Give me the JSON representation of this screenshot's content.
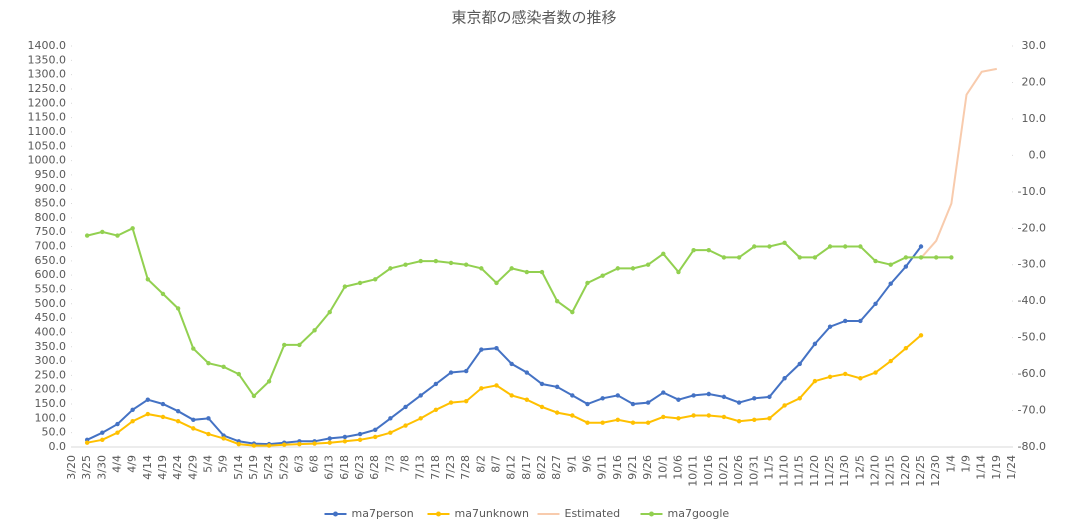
{
  "chart_data": {
    "type": "line",
    "title": "東京都の感染者数の推移",
    "categories": [
      "3/20",
      "3/25",
      "3/30",
      "4/4",
      "4/9",
      "4/14",
      "4/19",
      "4/24",
      "4/29",
      "5/4",
      "5/9",
      "5/14",
      "5/19",
      "5/24",
      "5/29",
      "6/3",
      "6/8",
      "6/13",
      "6/18",
      "6/23",
      "6/28",
      "7/3",
      "7/8",
      "7/13",
      "7/18",
      "7/23",
      "7/28",
      "8/2",
      "8/7",
      "8/12",
      "8/17",
      "8/22",
      "8/27",
      "9/1",
      "9/6",
      "9/11",
      "9/16",
      "9/21",
      "9/26",
      "10/1",
      "10/6",
      "10/11",
      "10/16",
      "10/21",
      "10/26",
      "10/31",
      "11/5",
      "11/10",
      "11/15",
      "11/20",
      "11/25",
      "11/30",
      "12/5",
      "12/10",
      "12/15",
      "12/20",
      "12/25",
      "12/30",
      "1/4",
      "1/9",
      "1/14",
      "1/19",
      "1/24"
    ],
    "series": [
      {
        "name": "ma7person",
        "color": "#4472c4",
        "marker": true,
        "values": [
          null,
          25,
          50,
          80,
          130,
          165,
          150,
          125,
          95,
          100,
          40,
          20,
          12,
          10,
          15,
          20,
          20,
          30,
          35,
          45,
          60,
          100,
          140,
          180,
          220,
          260,
          265,
          340,
          345,
          290,
          260,
          220,
          210,
          180,
          150,
          170,
          180,
          150,
          155,
          190,
          165,
          180,
          185,
          175,
          155,
          170,
          175,
          240,
          290,
          360,
          420,
          440,
          440,
          500,
          570,
          630,
          700,
          null,
          null,
          null,
          null,
          null,
          null
        ]
      },
      {
        "name": "ma7unknown",
        "color": "#ffc000",
        "marker": true,
        "values": [
          null,
          15,
          25,
          50,
          90,
          115,
          105,
          90,
          65,
          45,
          30,
          10,
          5,
          5,
          8,
          10,
          12,
          15,
          20,
          25,
          35,
          50,
          75,
          100,
          130,
          155,
          160,
          205,
          215,
          180,
          165,
          140,
          120,
          110,
          85,
          85,
          95,
          85,
          85,
          105,
          100,
          110,
          110,
          105,
          90,
          95,
          100,
          145,
          170,
          230,
          245,
          255,
          240,
          260,
          300,
          345,
          390,
          null,
          null,
          null,
          null,
          null,
          null
        ]
      },
      {
        "name": "Estimated",
        "color": "#f8cbad",
        "marker": false,
        "values": [
          null,
          null,
          null,
          null,
          null,
          null,
          null,
          null,
          null,
          null,
          null,
          null,
          null,
          null,
          null,
          null,
          null,
          null,
          null,
          null,
          null,
          null,
          null,
          null,
          null,
          null,
          null,
          null,
          null,
          null,
          null,
          null,
          null,
          null,
          null,
          null,
          null,
          null,
          null,
          null,
          null,
          null,
          null,
          null,
          null,
          null,
          null,
          null,
          null,
          null,
          null,
          null,
          null,
          null,
          null,
          null,
          660,
          720,
          850,
          1230,
          1310,
          1320,
          null
        ]
      },
      {
        "name": "ma7google",
        "color": "#92d050",
        "marker": true,
        "axis": "y2",
        "values": [
          null,
          -22,
          -21,
          -22,
          -20,
          -34,
          -38,
          -42,
          -53,
          -57,
          -58,
          -60,
          -66,
          -62,
          -52,
          -52,
          -48,
          -43,
          -36,
          -35,
          -34,
          -31,
          -30,
          -29,
          -29,
          -29.5,
          -30,
          -31,
          -35,
          -31,
          -32,
          -32,
          -40,
          -43,
          -35,
          -33,
          -31,
          -31,
          -30,
          -27,
          -32,
          -26,
          -26,
          -28,
          -28,
          -25,
          -25,
          -24,
          -28,
          -28,
          -25,
          -25,
          -25,
          -29,
          -30,
          -28,
          -28,
          -28,
          -28,
          null,
          null,
          null,
          null
        ]
      }
    ],
    "ylim": [
      0,
      1400
    ],
    "yticks": [
      {
        "value": 0,
        "label": "0.0"
      },
      {
        "value": 50,
        "label": "50.0"
      },
      {
        "value": 100,
        "label": "100.0"
      },
      {
        "value": 150,
        "label": "150.0"
      },
      {
        "value": 200,
        "label": "200.0"
      },
      {
        "value": 250,
        "label": "250.0"
      },
      {
        "value": 300,
        "label": "300.0"
      },
      {
        "value": 350,
        "label": "350.0"
      },
      {
        "value": 400,
        "label": "400.0"
      },
      {
        "value": 450,
        "label": "450.0"
      },
      {
        "value": 500,
        "label": "500.0"
      },
      {
        "value": 550,
        "label": "550.0"
      },
      {
        "value": 600,
        "label": "600.0"
      },
      {
        "value": 650,
        "label": "650.0"
      },
      {
        "value": 700,
        "label": "700.0"
      },
      {
        "value": 750,
        "label": "750.0"
      },
      {
        "value": 800,
        "label": "800.0"
      },
      {
        "value": 850,
        "label": "850.0"
      },
      {
        "value": 900,
        "label": "900.0"
      },
      {
        "value": 950,
        "label": "950.0"
      },
      {
        "value": 1000,
        "label": "1000.0"
      },
      {
        "value": 1050,
        "label": "1050.0"
      },
      {
        "value": 1100,
        "label": "1100.0"
      },
      {
        "value": 1150,
        "label": "1150.0"
      },
      {
        "value": 1200,
        "label": "1200.0"
      },
      {
        "value": 1250,
        "label": "1250.0"
      },
      {
        "value": 1300,
        "label": "1300.0"
      },
      {
        "value": 1350,
        "label": "1350.0"
      },
      {
        "value": 1400,
        "label": "1400.0"
      }
    ],
    "y2lim": [
      -80,
      30
    ],
    "y2ticks": [
      {
        "value": 30,
        "label": "30.0"
      },
      {
        "value": 20,
        "label": "20.0"
      },
      {
        "value": 10,
        "label": "10.0"
      },
      {
        "value": 0,
        "label": "0.0"
      },
      {
        "value": -10,
        "label": "-10.0"
      },
      {
        "value": -20,
        "label": "-20.0"
      },
      {
        "value": -30,
        "label": "-30.0"
      },
      {
        "value": -40,
        "label": "-40.0"
      },
      {
        "value": -50,
        "label": "-50.0"
      },
      {
        "value": -60,
        "label": "-60.0"
      },
      {
        "value": -70,
        "label": "-70.0"
      },
      {
        "value": -80,
        "label": "-80.0"
      }
    ],
    "grid": false,
    "legend": "bottom"
  }
}
